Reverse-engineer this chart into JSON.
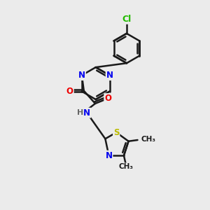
{
  "bg_color": "#ebebeb",
  "bond_color": "#1a1a1a",
  "bond_width": 1.8,
  "atom_colors": {
    "N": "#0000ee",
    "O": "#ee0000",
    "S": "#bbbb00",
    "Cl": "#22bb00",
    "C": "#1a1a1a",
    "H": "#666666"
  },
  "font_size": 8.5,
  "fig_size": [
    3.0,
    3.0
  ],
  "dpi": 100
}
